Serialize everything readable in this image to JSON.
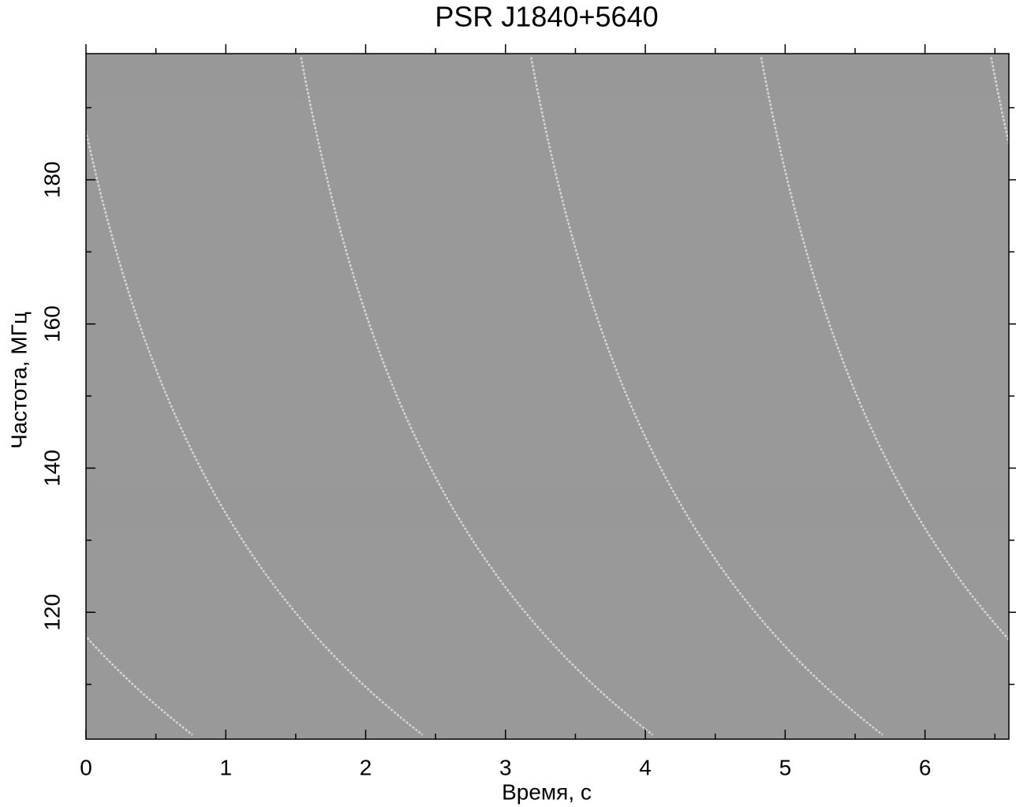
{
  "chart_data": {
    "type": "spectrogram",
    "title": "PSR J1840+5640",
    "x_label": "Время, с",
    "y_label": "Частота, МГц",
    "xlim": [
      0,
      6.6
    ],
    "xticks": [
      0,
      1,
      2,
      3,
      4,
      5,
      6
    ],
    "xminor_ticks": [
      0.5,
      1.5,
      2.5,
      3.5,
      4.5,
      5.5,
      6.5
    ],
    "ylim": [
      102.4,
      197.5
    ],
    "yticks": [
      120,
      140,
      160,
      180
    ],
    "yminor_ticks": [
      110,
      130,
      150,
      170,
      190
    ],
    "colormap": "gray"
  }
}
